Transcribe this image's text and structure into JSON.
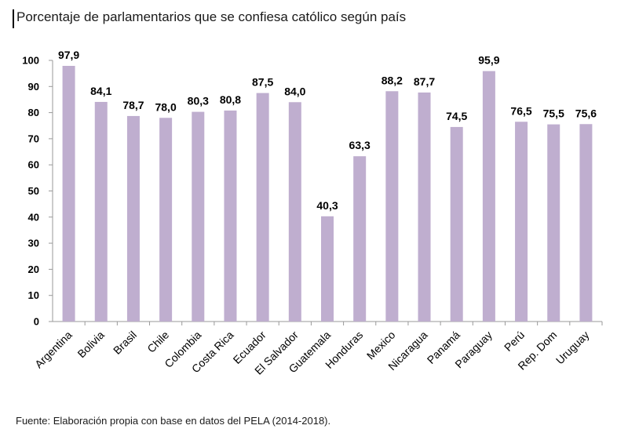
{
  "chart_data": {
    "type": "bar",
    "title": "Porcentaje de parlamentarios que se confiesa católico según país",
    "xlabel": "",
    "ylabel": "",
    "ylim": [
      0,
      100
    ],
    "yticks": [
      0,
      10,
      20,
      30,
      40,
      50,
      60,
      70,
      80,
      90,
      100
    ],
    "grid": false,
    "legend": "none",
    "bar_color": "#bfaecf",
    "categories": [
      "Argentina",
      "Bolivia",
      "Brasil",
      "Chile",
      "Colombia",
      "Costa Rica",
      "Ecuador",
      "El Salvador",
      "Guatemala",
      "Honduras",
      "Mexico",
      "Nicaragua",
      "Panamá",
      "Paraguay",
      "Perú",
      "Rep. Dom",
      "Uruguay"
    ],
    "values": [
      97.9,
      84.1,
      78.7,
      78.0,
      80.3,
      80.8,
      87.5,
      84.0,
      40.3,
      63.3,
      88.2,
      87.7,
      74.5,
      95.9,
      76.5,
      75.5,
      75.6
    ],
    "data_labels": [
      "97,9",
      "84,1",
      "78,7",
      "78,0",
      "80,3",
      "80,8",
      "87,5",
      "84,0",
      "40,3",
      "63,3",
      "88,2",
      "87,7",
      "74,5",
      "95,9",
      "76,5",
      "75,5",
      "75,6"
    ]
  },
  "source_note": "Fuente: Elaboración propia con base en datos del PELA (2014-2018)."
}
